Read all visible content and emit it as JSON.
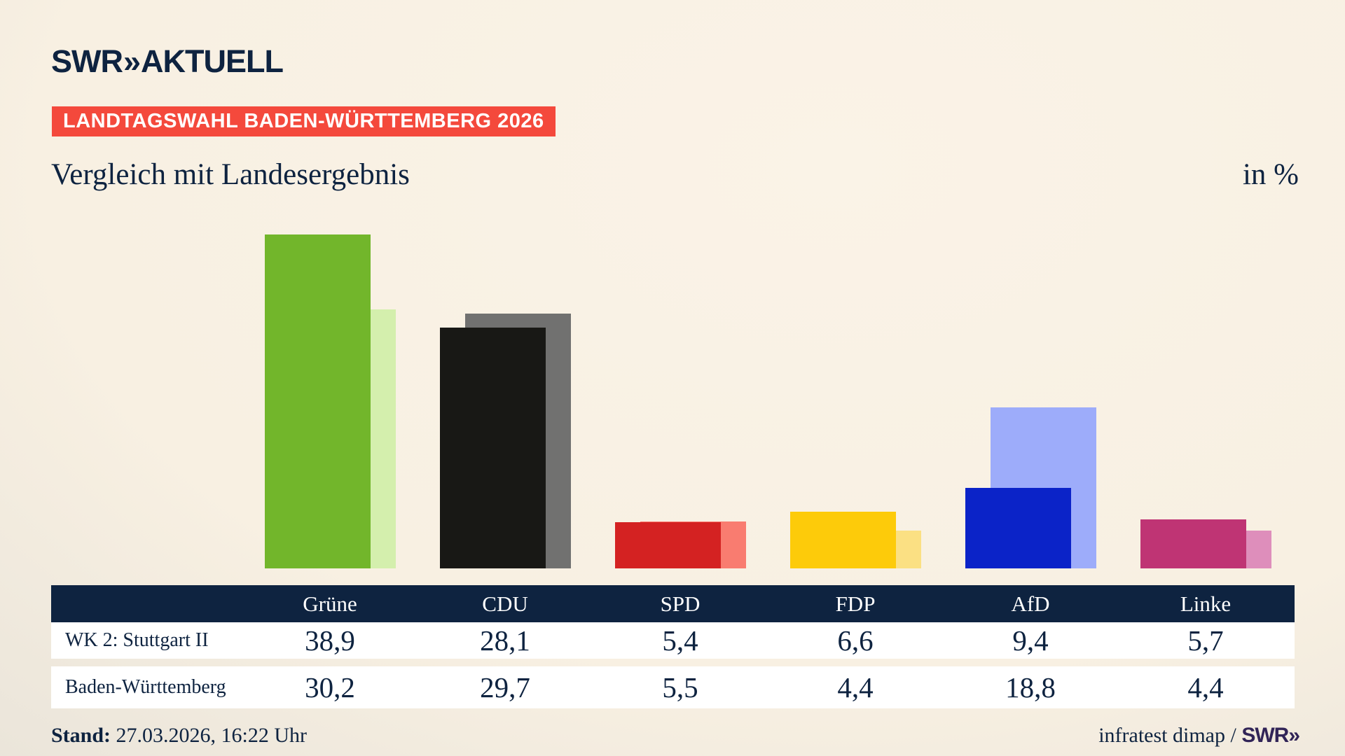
{
  "brand": {
    "swr": "SWR",
    "chevrons": "»",
    "aktuell": "AKTUELL"
  },
  "banner": {
    "label": "LANDTAGSWAHL BADEN-WÜRTTEMBERG 2026",
    "bg": "#f4493c"
  },
  "title": "Vergleich mit Landesergebnis",
  "unit_label": "in %",
  "chart_data": {
    "type": "bar",
    "categories": [
      "Grüne",
      "CDU",
      "SPD",
      "FDP",
      "AfD",
      "Linke"
    ],
    "series": [
      {
        "name": "WK 2: Stuttgart II",
        "values": [
          38.9,
          28.1,
          5.4,
          6.6,
          9.4,
          5.7
        ],
        "display": [
          "38,9",
          "28,1",
          "5,4",
          "6,6",
          "9,4",
          "5,7"
        ],
        "colors": [
          "#72b62b",
          "#181815",
          "#d42222",
          "#fdcb0a",
          "#0b23c8",
          "#bf3474"
        ]
      },
      {
        "name": "Baden-Württemberg",
        "values": [
          30.2,
          29.7,
          5.5,
          4.4,
          18.8,
          4.4
        ],
        "display": [
          "30,2",
          "29,7",
          "5,5",
          "4,4",
          "18,8",
          "4,4"
        ],
        "colors": [
          "#d4efad",
          "#717170",
          "#f97c70",
          "#fbe083",
          "#9dacfa",
          "#de8ebb"
        ]
      }
    ],
    "unit": "%",
    "ylim": [
      0,
      40
    ],
    "axes_hidden": true,
    "legend_position": "table-below-chart"
  },
  "footer": {
    "stand_label": "Stand:",
    "stand_value": " 27.03.2026, 16:22 Uhr",
    "source_text": "infratest dimap / ",
    "source_brand_swr": "SWR",
    "source_brand_chevrons": "»"
  },
  "colors": {
    "navy": "#0e2340",
    "banner_red": "#f4493c",
    "table_header_bg": "#0e2340",
    "row_bg": "#ffffff"
  }
}
